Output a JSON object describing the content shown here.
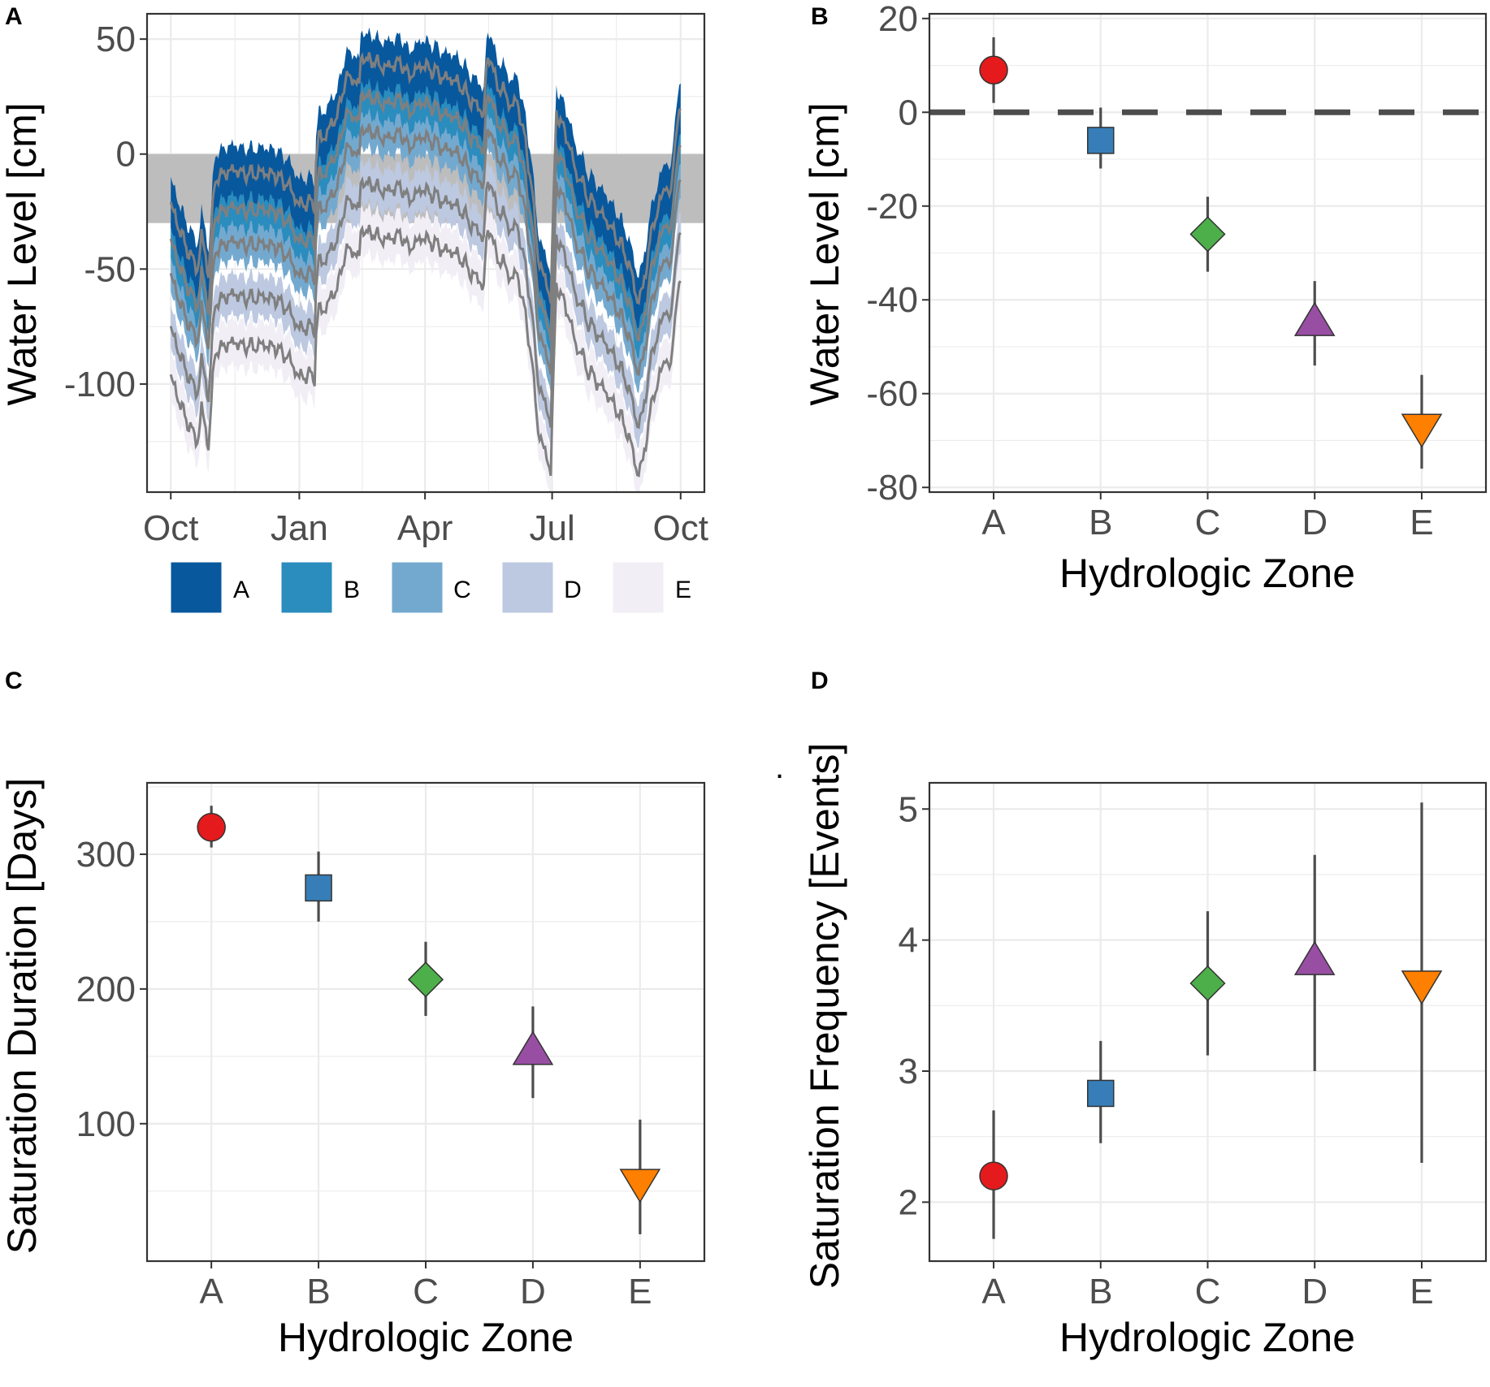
{
  "chart_data": [
    {
      "panel": "A",
      "type": "area",
      "xlabel": "",
      "ylabel": "Water Level [cm]",
      "x_ticks": [
        "Oct",
        "Jan",
        "Apr",
        "Jul",
        "Oct"
      ],
      "x_tick_days": [
        0,
        92,
        182,
        273,
        365
      ],
      "xlim": [
        -17,
        382
      ],
      "ylim": [
        -147,
        61
      ],
      "y_ticks": [
        50,
        0,
        -50,
        -100
      ],
      "y_tick_labels": [
        "50",
        "0",
        "-50",
        "-100"
      ],
      "reference_band": {
        "ymin": -30,
        "ymax": 0,
        "color": "#bdbdbd"
      },
      "profile": {
        "days": [
          0,
          10,
          19,
          20,
          22,
          27,
          30,
          32,
          36,
          38,
          40,
          44,
          48,
          52,
          56,
          60,
          64,
          68,
          72,
          76,
          80,
          84,
          88,
          92,
          100,
          103,
          104,
          106,
          110,
          115,
          120,
          125,
          130,
          135,
          136,
          138,
          141,
          145,
          150,
          155,
          160,
          165,
          170,
          175,
          180,
          185,
          190,
          195,
          200,
          205,
          210,
          215,
          220,
          224,
          226,
          229,
          233,
          238,
          243,
          248,
          253,
          258,
          263,
          268,
          272,
          274,
          276,
          278,
          281,
          286,
          290,
          294,
          298,
          302,
          306,
          310,
          314,
          318,
          322,
          326,
          330,
          334,
          338,
          342,
          346,
          350,
          354,
          358,
          362,
          365
        ],
        "offsets": [
          -15,
          -32,
          -43,
          -40,
          -28,
          -45,
          -17,
          -3,
          -3,
          -1,
          -1,
          0,
          0,
          -2,
          -1,
          -2,
          -1,
          -1,
          -2,
          -2,
          -5,
          -6,
          -11,
          -15,
          -14,
          -15,
          3,
          15,
          14,
          20,
          25,
          40,
          40,
          37,
          48,
          50,
          47,
          48,
          45,
          45,
          46,
          47,
          41,
          43,
          46,
          44,
          43,
          40,
          40,
          38,
          35,
          30,
          28,
          24,
          45,
          50,
          37,
          35,
          28,
          30,
          15,
          -5,
          -38,
          -48,
          -55,
          -15,
          25,
          23,
          18,
          10,
          -2,
          -4,
          -12,
          -14,
          -18,
          -20,
          -24,
          -28,
          -32,
          -38,
          -45,
          -57,
          -52,
          -35,
          -22,
          -15,
          -6,
          -12,
          20,
          25
        ]
      },
      "zone_shift": [
        0,
        -19,
        -34,
        -56,
        -76
      ],
      "bands": [
        {
          "name": "A",
          "lo": -18,
          "hi": 4,
          "color": "#08589e"
        },
        {
          "name": "B",
          "lo": -12,
          "hi": 4,
          "color": "#2b8cbe"
        },
        {
          "name": "C",
          "lo": -12,
          "hi": 4,
          "color": "#74a9cf"
        },
        {
          "name": "D",
          "lo": -14,
          "hi": 4,
          "color": "#bdc9e1"
        },
        {
          "name": "E",
          "lo": -16,
          "hi": 4,
          "color": "#f1eef6"
        }
      ],
      "mean_line_color": "#7f7f7f",
      "legend": [
        "A",
        "B",
        "C",
        "D",
        "E"
      ]
    },
    {
      "panel": "B",
      "type": "scatter",
      "xlabel": "Hydrologic Zone",
      "ylabel": "Water Level [cm]",
      "categories": [
        "A",
        "B",
        "C",
        "D",
        "E"
      ],
      "values": [
        9,
        -6,
        -26,
        -45,
        -67
      ],
      "lower": [
        2,
        -12,
        -34,
        -54,
        -76
      ],
      "upper": [
        16,
        1,
        -18,
        -36,
        -56
      ],
      "ylim": [
        -81,
        21
      ],
      "y_ticks": [
        20,
        0,
        -20,
        -40,
        -60,
        -80
      ],
      "y_tick_labels": [
        "20",
        "0",
        "-20",
        "-40",
        "-60",
        "-80"
      ],
      "hline": 0
    },
    {
      "panel": "C",
      "type": "scatter",
      "xlabel": "Hydrologic Zone",
      "ylabel": "Saturation Duration [Days]",
      "categories": [
        "A",
        "B",
        "C",
        "D",
        "E"
      ],
      "values": [
        320,
        275,
        207,
        153,
        57
      ],
      "lower": [
        305,
        250,
        180,
        119,
        18
      ],
      "upper": [
        336,
        302,
        235,
        187,
        103
      ],
      "ylim": [
        -2,
        353
      ],
      "y_ticks": [
        300,
        200,
        100
      ],
      "y_tick_labels": [
        "300",
        "200",
        "100"
      ]
    },
    {
      "panel": "D",
      "type": "scatter",
      "xlabel": "Hydrologic Zone",
      "ylabel": "Saturation Frequency [Events]",
      "categories": [
        "A",
        "B",
        "C",
        "D",
        "E"
      ],
      "values": [
        2.2,
        2.83,
        3.67,
        3.83,
        3.67
      ],
      "lower": [
        1.72,
        2.45,
        3.12,
        3.0,
        2.3
      ],
      "upper": [
        2.7,
        3.23,
        4.22,
        4.65,
        5.05
      ],
      "ylim": [
        1.55,
        5.2
      ],
      "y_ticks": [
        5,
        4,
        3,
        2
      ],
      "y_tick_labels": [
        "5",
        "4",
        "3",
        "2"
      ]
    }
  ],
  "markers": {
    "A": {
      "shape": "circle",
      "color": "#e41a1c"
    },
    "B": {
      "shape": "square",
      "color": "#377eb8"
    },
    "C": {
      "shape": "diamond",
      "color": "#4daf4a"
    },
    "D": {
      "shape": "triangle-up",
      "color": "#984ea3"
    },
    "E": {
      "shape": "triangle-down",
      "color": "#ff7f00"
    }
  },
  "stray_mark": "."
}
